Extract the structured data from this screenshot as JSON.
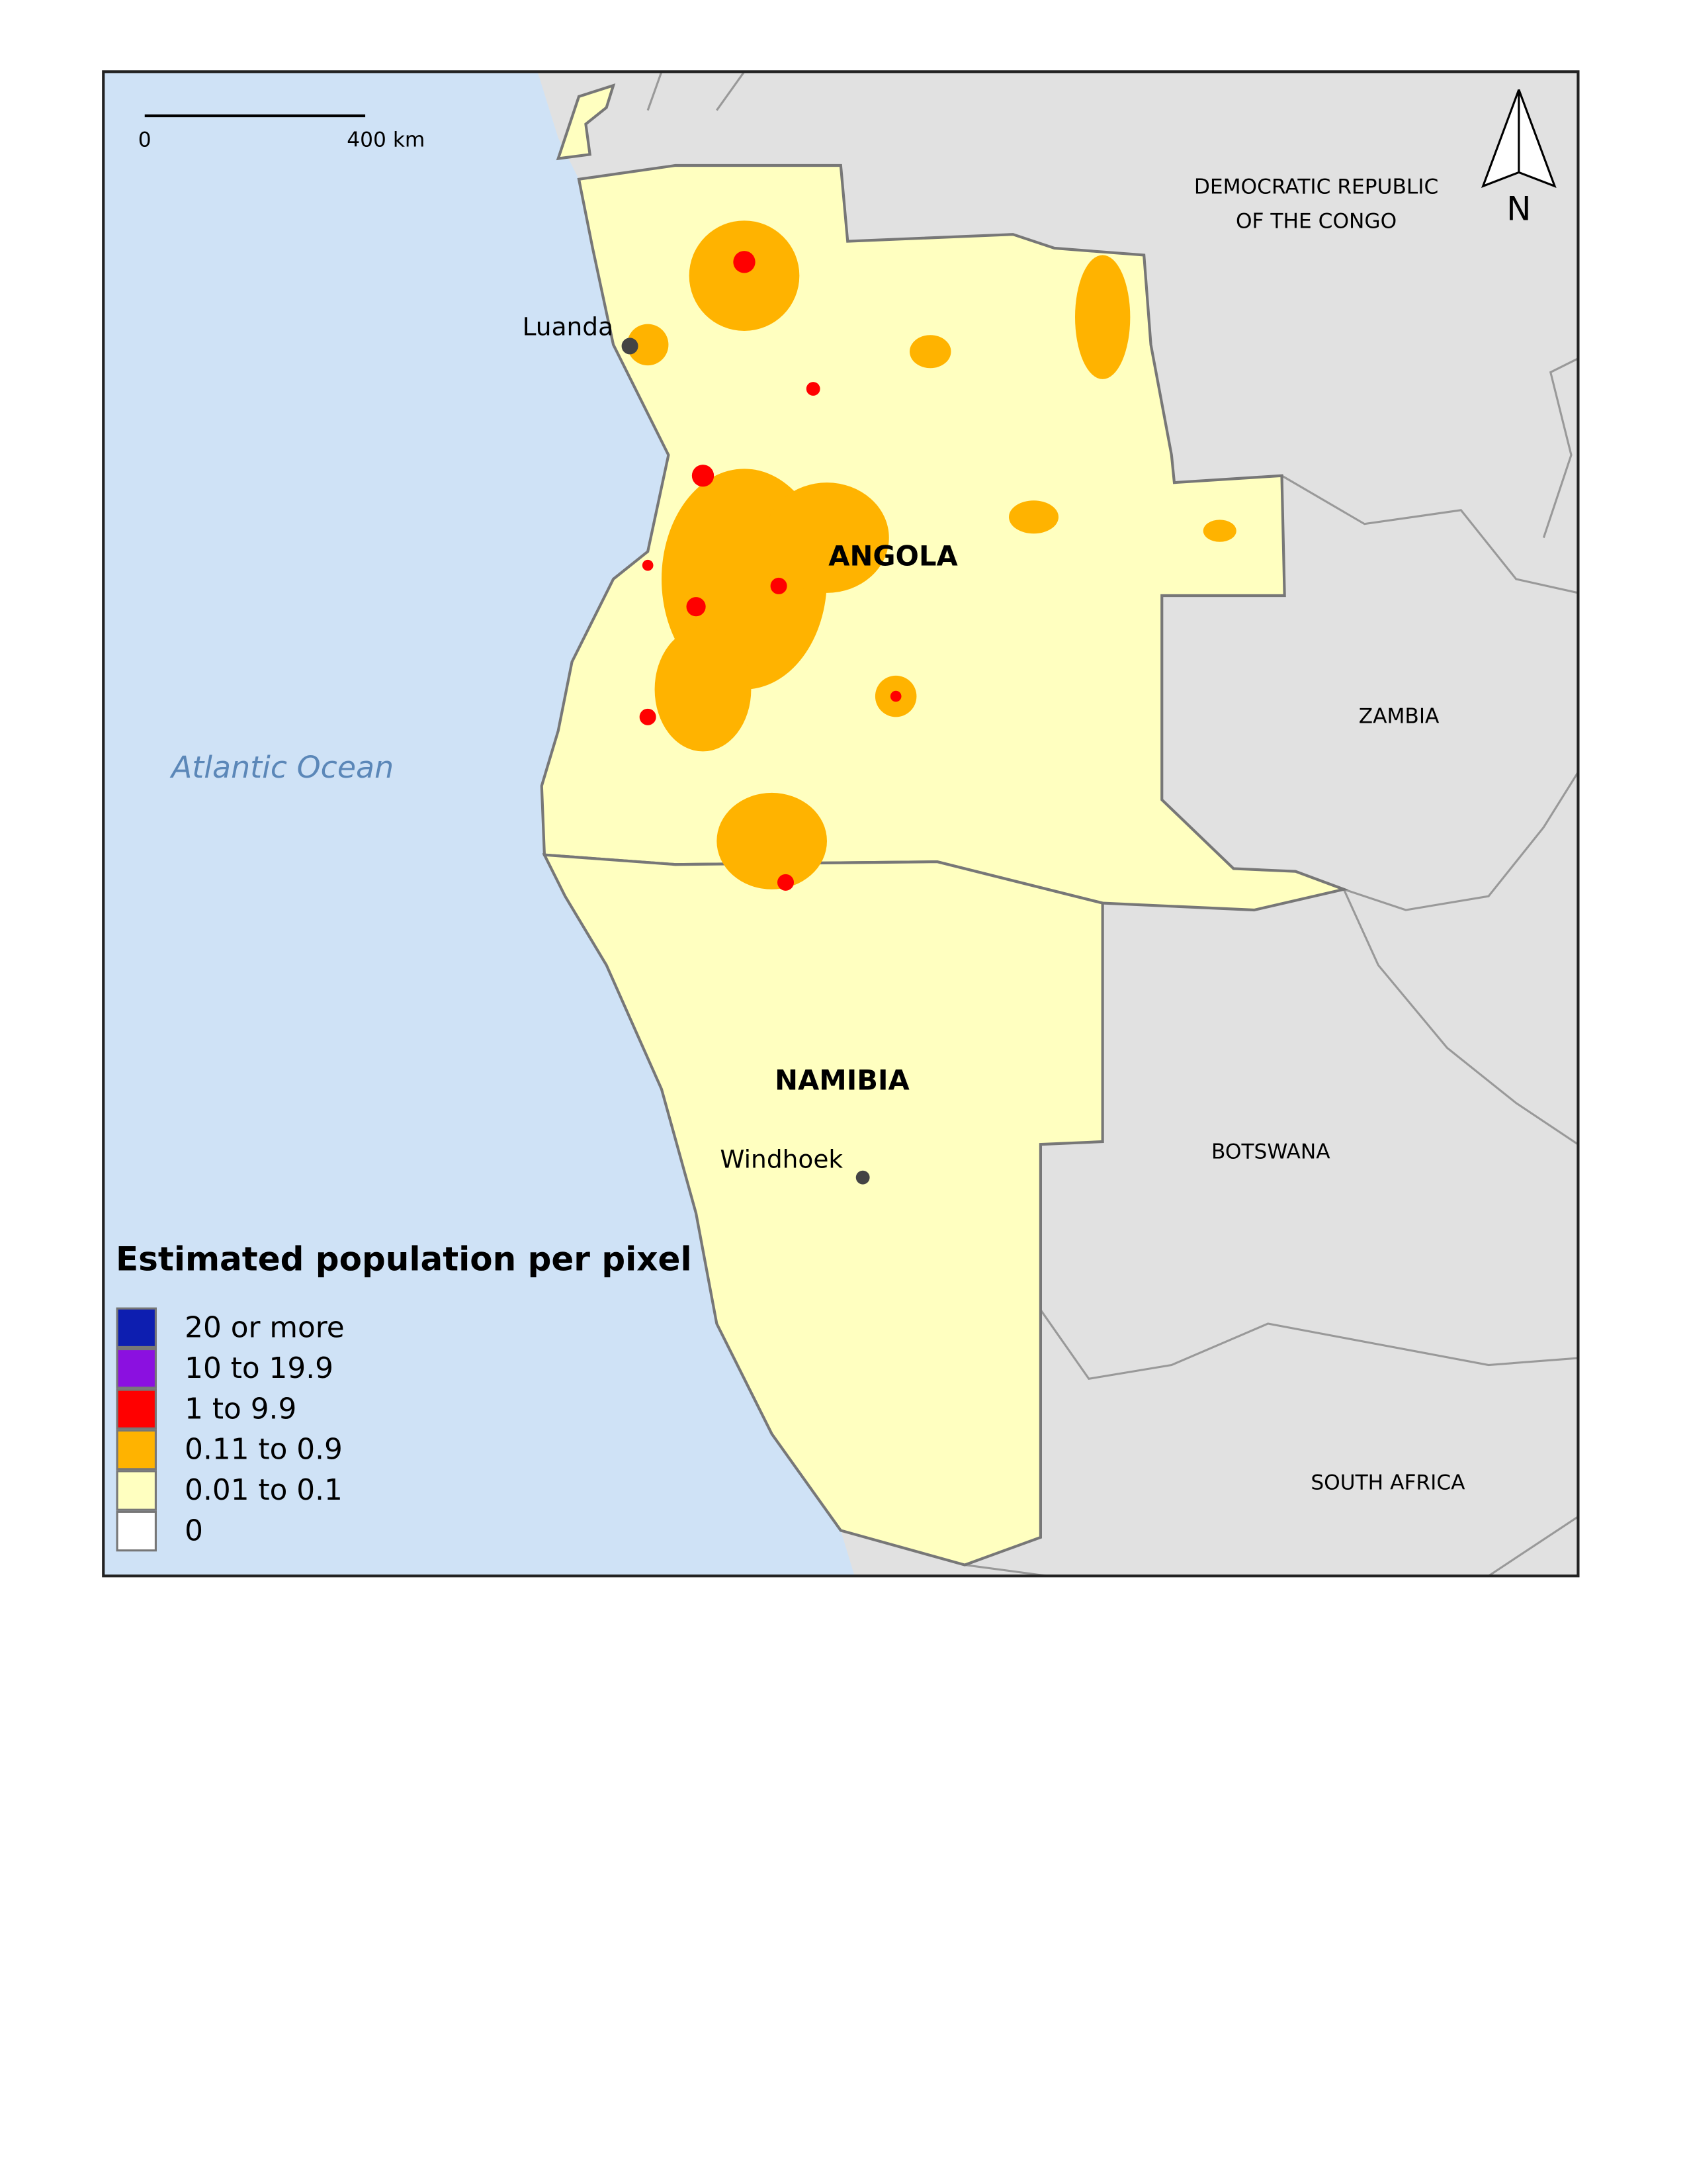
{
  "scale_bar": {
    "start_label": "0",
    "end_label": "400 km"
  },
  "north_arrow": {
    "label": "N"
  },
  "ocean": {
    "label": "Atlantic Ocean"
  },
  "countries": [
    {
      "label": "DEMOCRATIC REPUBLIC"
    },
    {
      "label": "OF THE CONGO"
    },
    {
      "label": "ANGOLA"
    },
    {
      "label": "ZAMBIA"
    },
    {
      "label": "NAMIBIA"
    },
    {
      "label": "BOTSWANA"
    },
    {
      "label": "SOUTH AFRICA"
    }
  ],
  "cities": [
    {
      "label": "Luanda"
    },
    {
      "label": "Windhoek"
    }
  ],
  "legend": {
    "title": "Estimated population per pixel",
    "items": [
      {
        "label": "20 or more",
        "color": "#0d1eb0"
      },
      {
        "label": "10 to 19.9",
        "color": "#8b10e0"
      },
      {
        "label": "1 to 9.9",
        "color": "#ff0000"
      },
      {
        "label": "0.11 to 0.9",
        "color": "#ffb300"
      },
      {
        "label": "0.01 to 0.1",
        "color": "#ffffc0"
      },
      {
        "label": "0",
        "color": "#ffffff"
      }
    ]
  }
}
